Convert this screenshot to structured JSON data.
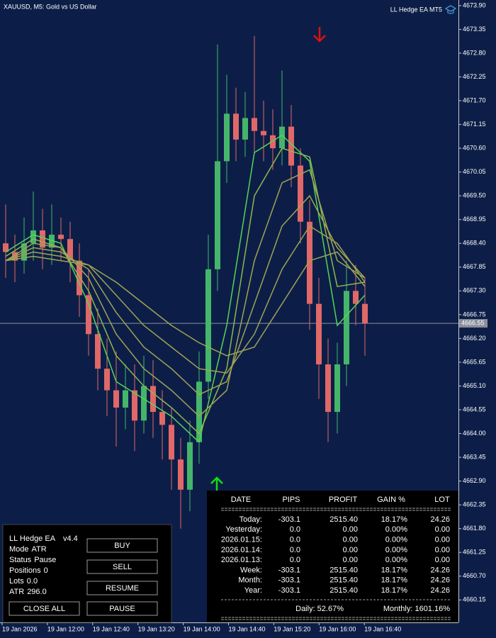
{
  "header": {
    "symbol": "XAUUSD, M5:  Gold vs US Dollar",
    "ea_name": "LL Hedge EA MT5"
  },
  "price_axis": {
    "ylim": [
      4659.63,
      4674.03
    ],
    "yticks": [
      {
        "value": 4673.9,
        "label": "4673.90"
      },
      4673.35,
      {
        "value": 4672.8,
        "label": "4672.80"
      },
      4672.25,
      {
        "value": 4671.7,
        "label": "4671.70"
      },
      4671.15,
      {
        "value": 4670.6,
        "label": "4670.60"
      },
      4670.05,
      {
        "value": 4669.5,
        "label": "4669.50"
      },
      4668.95,
      {
        "value": 4668.4,
        "label": "4668.40"
      },
      4667.85,
      {
        "value": 4667.3,
        "label": "4667.30"
      },
      4666.75,
      {
        "value": 4666.2,
        "label": "4666.20"
      },
      4665.65,
      {
        "value": 4665.1,
        "label": "4665.10"
      },
      4664.55,
      {
        "value": 4664.0,
        "label": "4664.00"
      },
      4663.45,
      {
        "value": 4662.9,
        "label": "4662.90"
      },
      4662.35,
      {
        "value": 4661.8,
        "label": "4661.80"
      },
      4661.25,
      {
        "value": 4660.7,
        "label": "4660.70"
      },
      4660.15
    ],
    "current_price": 4666.55
  },
  "time_axis": {
    "labels": [
      "19 Jan 2026",
      "19 Jan 12:00",
      "19 Jan 12:40",
      "19 Jan 13:20",
      "19 Jan 14:00",
      "19 Jan 14:40",
      "19 Jan 15:20",
      "19 Jan 16:00",
      "19 Jan 16:40"
    ]
  },
  "candles": {
    "up_color": "#45b56a",
    "down_color": "#e06868",
    "open": [
      4668.4,
      4668.2,
      4668.0,
      4668.4,
      4668.7,
      4668.3,
      4668.6,
      4668.5,
      4668.0,
      4667.2,
      4666.3,
      4665.5,
      4665.0,
      4664.6,
      4665.0,
      4664.3,
      4665.1,
      4664.5,
      4664.2,
      4663.4,
      4662.7,
      4663.8,
      4665.2,
      4667.8,
      4670.3,
      4671.4,
      4670.8,
      4671.3,
      4671.0,
      4670.9,
      4670.6,
      4671.1,
      4670.2,
      4668.9,
      4667.0,
      4665.6,
      4664.5,
      4665.6,
      4667.3,
      4667.0
    ],
    "high": [
      4669.3,
      4668.6,
      4669.0,
      4669.6,
      4669.2,
      4669.3,
      4669.0,
      4668.9,
      4668.4,
      4667.8,
      4666.9,
      4666.2,
      4665.9,
      4665.6,
      4665.6,
      4665.8,
      4665.7,
      4665.0,
      4664.6,
      4663.9,
      4664.3,
      4665.9,
      4668.6,
      4673.0,
      4672.3,
      4672.0,
      4671.9,
      4673.2,
      4671.7,
      4671.5,
      4672.4,
      4671.6,
      4670.6,
      4669.4,
      4667.6,
      4666.2,
      4666.1,
      4668.0,
      4667.9,
      4667.6
    ],
    "low": [
      4667.6,
      4667.5,
      4667.7,
      4668.0,
      4667.8,
      4667.9,
      4668.0,
      4667.5,
      4666.7,
      4665.8,
      4665.0,
      4664.4,
      4663.7,
      4664.1,
      4663.6,
      4664.0,
      4663.9,
      4663.4,
      4662.7,
      4661.8,
      4662.2,
      4663.3,
      4664.8,
      4667.3,
      4669.8,
      4670.3,
      4670.4,
      4670.5,
      4670.3,
      4670.1,
      4670.2,
      4669.7,
      4668.4,
      4666.4,
      4664.8,
      4663.8,
      4664.0,
      4665.1,
      4666.5,
      4665.8
    ],
    "close": [
      4668.2,
      4668.0,
      4668.4,
      4668.7,
      4668.3,
      4668.6,
      4668.5,
      4668.0,
      4667.2,
      4666.3,
      4665.5,
      4665.0,
      4664.6,
      4665.0,
      4664.3,
      4665.1,
      4664.5,
      4664.2,
      4663.4,
      4662.7,
      4663.8,
      4665.2,
      4667.8,
      4670.3,
      4671.4,
      4670.8,
      4671.3,
      4671.0,
      4670.9,
      4670.6,
      4671.1,
      4670.2,
      4668.9,
      4667.0,
      4665.6,
      4664.5,
      4665.6,
      4667.3,
      4667.0,
      4666.55
    ]
  },
  "ribbons": [
    {
      "color": "#55d455",
      "values": [
        4668.2,
        4668.6,
        4668.4,
        4667.0,
        4665.2,
        4664.8,
        4664.4,
        4663.8,
        4666.5,
        4670.5,
        4670.9,
        4670.3,
        4666.5,
        4667.2
      ]
    },
    {
      "color": "#8fb84c",
      "values": [
        4668.1,
        4668.5,
        4668.3,
        4667.3,
        4665.8,
        4665.1,
        4664.6,
        4664.0,
        4665.5,
        4669.5,
        4670.6,
        4670.4,
        4667.4,
        4667.5
      ]
    },
    {
      "color": "#a0a452",
      "values": [
        4668.0,
        4668.4,
        4668.3,
        4667.6,
        4666.3,
        4665.5,
        4665.0,
        4664.4,
        4665.0,
        4668.0,
        4669.8,
        4670.1,
        4668.0,
        4667.6
      ]
    },
    {
      "color": "#a0a452",
      "values": [
        4668.0,
        4668.3,
        4668.2,
        4667.8,
        4666.8,
        4666.0,
        4665.5,
        4664.9,
        4665.2,
        4667.0,
        4668.8,
        4669.5,
        4668.3,
        4667.6
      ]
    },
    {
      "color": "#a0a452",
      "values": [
        4668.0,
        4668.2,
        4668.1,
        4667.9,
        4667.2,
        4666.5,
        4666.0,
        4665.5,
        4665.4,
        4666.3,
        4667.8,
        4668.8,
        4668.4,
        4667.5
      ]
    },
    {
      "color": "#a0a452",
      "values": [
        4668.0,
        4668.1,
        4668.0,
        4667.9,
        4667.5,
        4667.0,
        4666.5,
        4666.1,
        4665.8,
        4666.0,
        4667.0,
        4668.0,
        4668.2,
        4667.4
      ]
    }
  ],
  "panel": {
    "title": "LL Hedge EA",
    "version": "v4.4",
    "lines": [
      {
        "label": "Mode",
        "value": "ATR"
      },
      {
        "label": "Status",
        "value": "Pause"
      },
      {
        "label": "Positions",
        "value": "0"
      },
      {
        "label": "Lots",
        "value": "0.0"
      },
      {
        "label": "ATR",
        "value": "296.0"
      }
    ],
    "buttons": [
      {
        "label": "BUY",
        "color": "#3cb043"
      },
      {
        "label": "SELL",
        "color": "#e02828"
      },
      {
        "label": "RESUME",
        "color": "#40d8e0"
      },
      {
        "label": "CLOSE ALL",
        "color": "#e040e0"
      },
      {
        "label": "PAUSE",
        "color": "#f0a030"
      }
    ]
  },
  "stats": {
    "headers": [
      "DATE",
      "PIPS",
      "PROFIT",
      "GAIN %",
      "LOT"
    ],
    "rows": [
      {
        "cells": [
          "Today:",
          "-303.1",
          "2515.40",
          "18.17%",
          "24.26"
        ],
        "colors": [
          "#a0a0a0",
          "#e03030",
          "#3cb043",
          "#3cb043",
          "#3cb043"
        ]
      },
      {
        "cells": [
          "Yesterday:",
          "0.0",
          "0.00",
          "0.00%",
          "0.00"
        ],
        "colors": [
          "#a0a0a0",
          "#c8c8c8",
          "#c8c8c8",
          "#c8c8c8",
          "#c8c8c8"
        ]
      },
      {
        "cells": [
          "2026.01.15:",
          "0.0",
          "0.00",
          "0.00%",
          "0.00"
        ],
        "colors": [
          "#a0a0a0",
          "#c8c8c8",
          "#c8c8c8",
          "#c8c8c8",
          "#c8c8c8"
        ]
      },
      {
        "cells": [
          "2026.01.14:",
          "0.0",
          "0.00",
          "0.00%",
          "0.00"
        ],
        "colors": [
          "#a0a0a0",
          "#c8c8c8",
          "#c8c8c8",
          "#c8c8c8",
          "#c8c8c8"
        ]
      },
      {
        "cells": [
          "2026.01.13:",
          "0.0",
          "0.00",
          "0.00%",
          "0.00"
        ],
        "colors": [
          "#a0a0a0",
          "#c8c8c8",
          "#c8c8c8",
          "#c8c8c8",
          "#c8c8c8"
        ]
      },
      {
        "cells": [
          "Week:",
          "-303.1",
          "2515.40",
          "18.17%",
          "24.26"
        ],
        "colors": [
          "#a0a0a0",
          "#e03030",
          "#3cb043",
          "#3cb043",
          "#3cb043"
        ]
      },
      {
        "cells": [
          "Month:",
          "-303.1",
          "2515.40",
          "18.17%",
          "24.26"
        ],
        "colors": [
          "#a0a0a0",
          "#e03030",
          "#3cb043",
          "#3cb043",
          "#3cb043"
        ]
      },
      {
        "cells": [
          "Year:",
          "-303.1",
          "2515.40",
          "18.17%",
          "24.26"
        ],
        "colors": [
          "#a0a0a0",
          "#e03030",
          "#3cb043",
          "#3cb043",
          "#3cb043"
        ]
      }
    ],
    "daily": "Daily: 52.67%",
    "monthly": "Monthly: 1601.16%"
  }
}
